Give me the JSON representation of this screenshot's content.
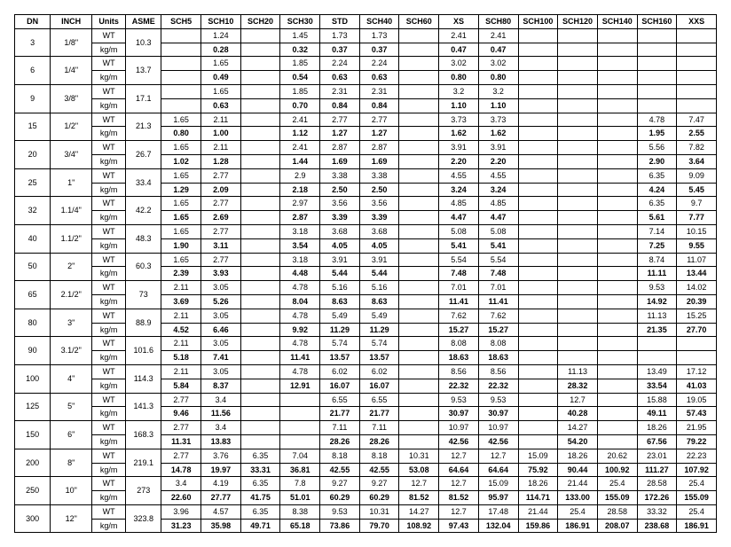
{
  "columns": [
    "DN",
    "INCH",
    "Units",
    "ASME",
    "SCH5",
    "SCH10",
    "SCH20",
    "SCH30",
    "STD",
    "SCH40",
    "SCH60",
    "XS",
    "SCH80",
    "SCH100",
    "SCH120",
    "SCH140",
    "SCH160",
    "XXS"
  ],
  "schedule_keys": [
    "SCH5",
    "SCH10",
    "SCH20",
    "SCH30",
    "STD",
    "SCH40",
    "SCH60",
    "XS",
    "SCH80",
    "SCH100",
    "SCH120",
    "SCH140",
    "SCH160",
    "XXS"
  ],
  "unit_labels": {
    "wt": "WT",
    "kgm": "kg/m"
  },
  "rows": [
    {
      "dn": "3",
      "inch": "1/8\"",
      "asme": "10.3",
      "wt": {
        "SCH10": "1.24",
        "SCH30": "1.45",
        "STD": "1.73",
        "SCH40": "1.73",
        "XS": "2.41",
        "SCH80": "2.41"
      },
      "kgm": {
        "SCH10": "0.28",
        "SCH30": "0.32",
        "STD": "0.37",
        "SCH40": "0.37",
        "XS": "0.47",
        "SCH80": "0.47"
      }
    },
    {
      "dn": "6",
      "inch": "1/4\"",
      "asme": "13.7",
      "wt": {
        "SCH10": "1.65",
        "SCH30": "1.85",
        "STD": "2.24",
        "SCH40": "2.24",
        "XS": "3.02",
        "SCH80": "3.02"
      },
      "kgm": {
        "SCH10": "0.49",
        "SCH30": "0.54",
        "STD": "0.63",
        "SCH40": "0.63",
        "XS": "0.80",
        "SCH80": "0.80"
      }
    },
    {
      "dn": "9",
      "inch": "3/8\"",
      "asme": "17.1",
      "wt": {
        "SCH10": "1.65",
        "SCH30": "1.85",
        "STD": "2.31",
        "SCH40": "2.31",
        "XS": "3.2",
        "SCH80": "3.2"
      },
      "kgm": {
        "SCH10": "0.63",
        "SCH30": "0.70",
        "STD": "0.84",
        "SCH40": "0.84",
        "XS": "1.10",
        "SCH80": "1.10"
      }
    },
    {
      "dn": "15",
      "inch": "1/2\"",
      "asme": "21.3",
      "wt": {
        "SCH5": "1.65",
        "SCH10": "2.11",
        "SCH30": "2.41",
        "STD": "2.77",
        "SCH40": "2.77",
        "XS": "3.73",
        "SCH80": "3.73",
        "SCH160": "4.78",
        "XXS": "7.47"
      },
      "kgm": {
        "SCH5": "0.80",
        "SCH10": "1.00",
        "SCH30": "1.12",
        "STD": "1.27",
        "SCH40": "1.27",
        "XS": "1.62",
        "SCH80": "1.62",
        "SCH160": "1.95",
        "XXS": "2.55"
      }
    },
    {
      "dn": "20",
      "inch": "3/4\"",
      "asme": "26.7",
      "wt": {
        "SCH5": "1.65",
        "SCH10": "2.11",
        "SCH30": "2.41",
        "STD": "2.87",
        "SCH40": "2.87",
        "XS": "3.91",
        "SCH80": "3.91",
        "SCH160": "5.56",
        "XXS": "7.82"
      },
      "kgm": {
        "SCH5": "1.02",
        "SCH10": "1.28",
        "SCH30": "1.44",
        "STD": "1.69",
        "SCH40": "1.69",
        "XS": "2.20",
        "SCH80": "2.20",
        "SCH160": "2.90",
        "XXS": "3.64"
      }
    },
    {
      "dn": "25",
      "inch": "1\"",
      "asme": "33.4",
      "wt": {
        "SCH5": "1.65",
        "SCH10": "2.77",
        "SCH30": "2.9",
        "STD": "3.38",
        "SCH40": "3.38",
        "XS": "4.55",
        "SCH80": "4.55",
        "SCH160": "6.35",
        "XXS": "9.09"
      },
      "kgm": {
        "SCH5": "1.29",
        "SCH10": "2.09",
        "SCH30": "2.18",
        "STD": "2.50",
        "SCH40": "2.50",
        "XS": "3.24",
        "SCH80": "3.24",
        "SCH160": "4.24",
        "XXS": "5.45"
      }
    },
    {
      "dn": "32",
      "inch": "1.1/4\"",
      "asme": "42.2",
      "wt": {
        "SCH5": "1.65",
        "SCH10": "2.77",
        "SCH30": "2.97",
        "STD": "3.56",
        "SCH40": "3.56",
        "XS": "4.85",
        "SCH80": "4.85",
        "SCH160": "6.35",
        "XXS": "9.7"
      },
      "kgm": {
        "SCH5": "1.65",
        "SCH10": "2.69",
        "SCH30": "2.87",
        "STD": "3.39",
        "SCH40": "3.39",
        "XS": "4.47",
        "SCH80": "4.47",
        "SCH160": "5.61",
        "XXS": "7.77"
      }
    },
    {
      "dn": "40",
      "inch": "1.1/2\"",
      "asme": "48.3",
      "wt": {
        "SCH5": "1.65",
        "SCH10": "2.77",
        "SCH30": "3.18",
        "STD": "3.68",
        "SCH40": "3.68",
        "XS": "5.08",
        "SCH80": "5.08",
        "SCH160": "7.14",
        "XXS": "10.15"
      },
      "kgm": {
        "SCH5": "1.90",
        "SCH10": "3.11",
        "SCH30": "3.54",
        "STD": "4.05",
        "SCH40": "4.05",
        "XS": "5.41",
        "SCH80": "5.41",
        "SCH160": "7.25",
        "XXS": "9.55"
      }
    },
    {
      "dn": "50",
      "inch": "2\"",
      "asme": "60.3",
      "wt": {
        "SCH5": "1.65",
        "SCH10": "2.77",
        "SCH30": "3.18",
        "STD": "3.91",
        "SCH40": "3.91",
        "XS": "5.54",
        "SCH80": "5.54",
        "SCH160": "8.74",
        "XXS": "11.07"
      },
      "kgm": {
        "SCH5": "2.39",
        "SCH10": "3.93",
        "SCH30": "4.48",
        "STD": "5.44",
        "SCH40": "5.44",
        "XS": "7.48",
        "SCH80": "7.48",
        "SCH160": "11.11",
        "XXS": "13.44"
      }
    },
    {
      "dn": "65",
      "inch": "2.1/2\"",
      "asme": "73",
      "wt": {
        "SCH5": "2.11",
        "SCH10": "3.05",
        "SCH30": "4.78",
        "STD": "5.16",
        "SCH40": "5.16",
        "XS": "7.01",
        "SCH80": "7.01",
        "SCH160": "9.53",
        "XXS": "14.02"
      },
      "kgm": {
        "SCH5": "3.69",
        "SCH10": "5.26",
        "SCH30": "8.04",
        "STD": "8.63",
        "SCH40": "8.63",
        "XS": "11.41",
        "SCH80": "11.41",
        "SCH160": "14.92",
        "XXS": "20.39"
      }
    },
    {
      "dn": "80",
      "inch": "3\"",
      "asme": "88.9",
      "wt": {
        "SCH5": "2.11",
        "SCH10": "3.05",
        "SCH30": "4.78",
        "STD": "5.49",
        "SCH40": "5.49",
        "XS": "7.62",
        "SCH80": "7.62",
        "SCH160": "11.13",
        "XXS": "15.25"
      },
      "kgm": {
        "SCH5": "4.52",
        "SCH10": "6.46",
        "SCH30": "9.92",
        "STD": "11.29",
        "SCH40": "11.29",
        "XS": "15.27",
        "SCH80": "15.27",
        "SCH160": "21.35",
        "XXS": "27.70"
      }
    },
    {
      "dn": "90",
      "inch": "3.1/2\"",
      "asme": "101.6",
      "wt": {
        "SCH5": "2.11",
        "SCH10": "3.05",
        "SCH30": "4.78",
        "STD": "5.74",
        "SCH40": "5.74",
        "XS": "8.08",
        "SCH80": "8.08"
      },
      "kgm": {
        "SCH5": "5.18",
        "SCH10": "7.41",
        "SCH30": "11.41",
        "STD": "13.57",
        "SCH40": "13.57",
        "XS": "18.63",
        "SCH80": "18.63"
      }
    },
    {
      "dn": "100",
      "inch": "4\"",
      "asme": "114.3",
      "wt": {
        "SCH5": "2.11",
        "SCH10": "3.05",
        "SCH30": "4.78",
        "STD": "6.02",
        "SCH40": "6.02",
        "XS": "8.56",
        "SCH80": "8.56",
        "SCH120": "11.13",
        "SCH160": "13.49",
        "XXS": "17.12"
      },
      "kgm": {
        "SCH5": "5.84",
        "SCH10": "8.37",
        "SCH30": "12.91",
        "STD": "16.07",
        "SCH40": "16.07",
        "XS": "22.32",
        "SCH80": "22.32",
        "SCH120": "28.32",
        "SCH160": "33.54",
        "XXS": "41.03"
      }
    },
    {
      "dn": "125",
      "inch": "5\"",
      "asme": "141.3",
      "wt": {
        "SCH5": "2.77",
        "SCH10": "3.4",
        "STD": "6.55",
        "SCH40": "6.55",
        "XS": "9.53",
        "SCH80": "9.53",
        "SCH120": "12.7",
        "SCH160": "15.88",
        "XXS": "19.05"
      },
      "kgm": {
        "SCH5": "9.46",
        "SCH10": "11.56",
        "STD": "21.77",
        "SCH40": "21.77",
        "XS": "30.97",
        "SCH80": "30.97",
        "SCH120": "40.28",
        "SCH160": "49.11",
        "XXS": "57.43"
      }
    },
    {
      "dn": "150",
      "inch": "6\"",
      "asme": "168.3",
      "wt": {
        "SCH5": "2.77",
        "SCH10": "3.4",
        "STD": "7.11",
        "SCH40": "7.11",
        "XS": "10.97",
        "SCH80": "10.97",
        "SCH120": "14.27",
        "SCH160": "18.26",
        "XXS": "21.95"
      },
      "kgm": {
        "SCH5": "11.31",
        "SCH10": "13.83",
        "STD": "28.26",
        "SCH40": "28.26",
        "XS": "42.56",
        "SCH80": "42.56",
        "SCH120": "54.20",
        "SCH160": "67.56",
        "XXS": "79.22"
      }
    },
    {
      "dn": "200",
      "inch": "8\"",
      "asme": "219.1",
      "wt": {
        "SCH5": "2.77",
        "SCH10": "3.76",
        "SCH20": "6.35",
        "SCH30": "7.04",
        "STD": "8.18",
        "SCH40": "8.18",
        "SCH60": "10.31",
        "XS": "12.7",
        "SCH80": "12.7",
        "SCH100": "15.09",
        "SCH120": "18.26",
        "SCH140": "20.62",
        "SCH160": "23.01",
        "XXS": "22.23"
      },
      "kgm": {
        "SCH5": "14.78",
        "SCH10": "19.97",
        "SCH20": "33.31",
        "SCH30": "36.81",
        "STD": "42.55",
        "SCH40": "42.55",
        "SCH60": "53.08",
        "XS": "64.64",
        "SCH80": "64.64",
        "SCH100": "75.92",
        "SCH120": "90.44",
        "SCH140": "100.92",
        "SCH160": "111.27",
        "XXS": "107.92"
      }
    },
    {
      "dn": "250",
      "inch": "10\"",
      "asme": "273",
      "wt": {
        "SCH5": "3.4",
        "SCH10": "4.19",
        "SCH20": "6.35",
        "SCH30": "7.8",
        "STD": "9.27",
        "SCH40": "9.27",
        "SCH60": "12.7",
        "XS": "12.7",
        "SCH80": "15.09",
        "SCH100": "18.26",
        "SCH120": "21.44",
        "SCH140": "25.4",
        "SCH160": "28.58",
        "XXS": "25.4"
      },
      "kgm": {
        "SCH5": "22.60",
        "SCH10": "27.77",
        "SCH20": "41.75",
        "SCH30": "51.01",
        "STD": "60.29",
        "SCH40": "60.29",
        "SCH60": "81.52",
        "XS": "81.52",
        "SCH80": "95.97",
        "SCH100": "114.71",
        "SCH120": "133.00",
        "SCH140": "155.09",
        "SCH160": "172.26",
        "XXS": "155.09"
      }
    },
    {
      "dn": "300",
      "inch": "12\"",
      "asme": "323.8",
      "wt": {
        "SCH5": "3.96",
        "SCH10": "4.57",
        "SCH20": "6.35",
        "SCH30": "8.38",
        "STD": "9.53",
        "SCH40": "10.31",
        "SCH60": "14.27",
        "XS": "12.7",
        "SCH80": "17.48",
        "SCH100": "21.44",
        "SCH120": "25.4",
        "SCH140": "28.58",
        "SCH160": "33.32",
        "XXS": "25.4"
      },
      "kgm": {
        "SCH5": "31.23",
        "SCH10": "35.98",
        "SCH20": "49.71",
        "SCH30": "65.18",
        "STD": "73.86",
        "SCH40": "79.70",
        "SCH60": "108.92",
        "XS": "97.43",
        "SCH80": "132.04",
        "SCH100": "159.86",
        "SCH120": "186.91",
        "SCH140": "208.07",
        "SCH160": "238.68",
        "XXS": "186.91"
      }
    }
  ]
}
